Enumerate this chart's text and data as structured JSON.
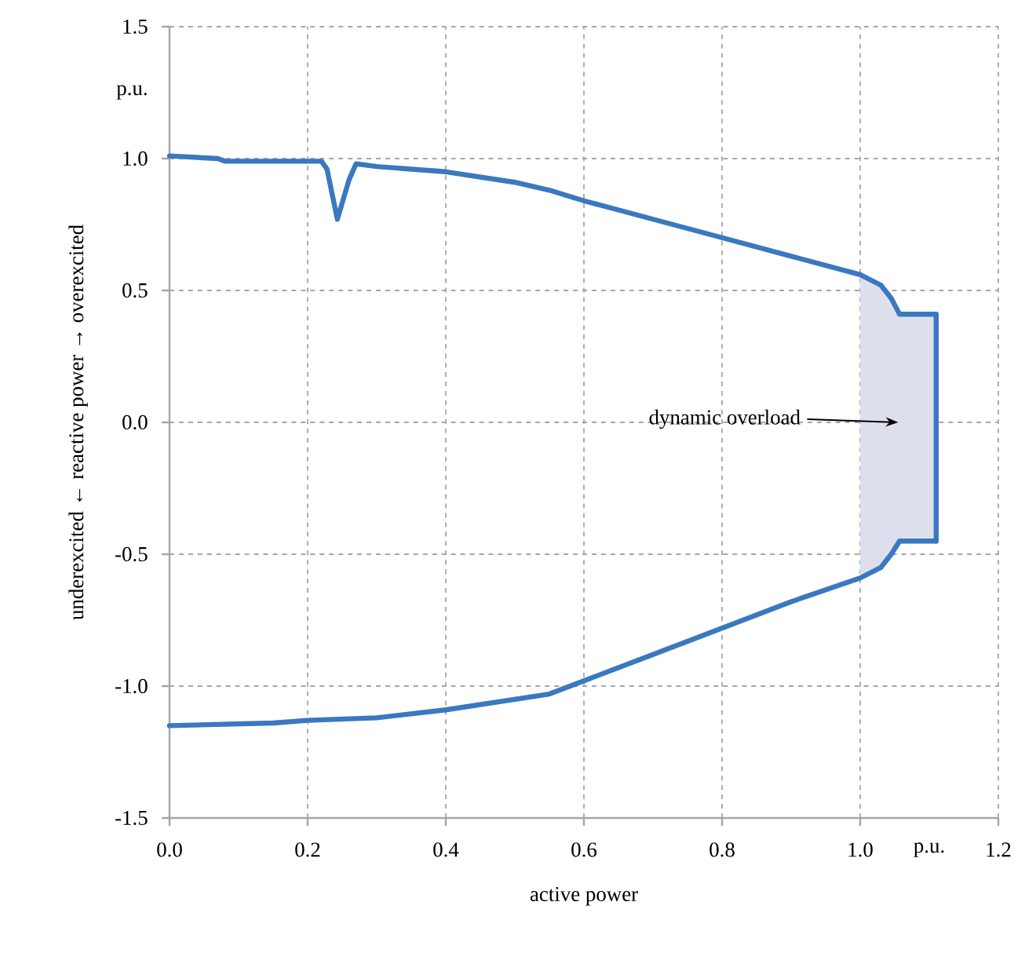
{
  "chart_data": {
    "type": "line",
    "xlabel": "active power",
    "ylabel": "underexcited ← reactive power → overexcited",
    "xlim": [
      0,
      1.2
    ],
    "ylim": [
      -1.5,
      1.5
    ],
    "xticks": [
      {
        "value": 0,
        "label": "0.0"
      },
      {
        "value": 0.2,
        "label": "0.2"
      },
      {
        "value": 0.4,
        "label": "0.4"
      },
      {
        "value": 0.6,
        "label": "0.6"
      },
      {
        "value": 0.8,
        "label": "0.8"
      },
      {
        "value": 1.0,
        "label": "1.0"
      },
      {
        "value": 1.2,
        "label": "1.2"
      }
    ],
    "yticks": [
      {
        "value": -1.5,
        "label": "-1.5"
      },
      {
        "value": -1.0,
        "label": "-1.0"
      },
      {
        "value": -0.5,
        "label": "-0.5"
      },
      {
        "value": 0,
        "label": "0.0"
      },
      {
        "value": 0.5,
        "label": "0.5"
      },
      {
        "value": 1.0,
        "label": "1.0"
      },
      {
        "value": 1.5,
        "label": "1.5"
      }
    ],
    "grid": true,
    "line_style": "solid",
    "marker": "none",
    "series": [
      {
        "color": "#3a78c0",
        "x": [
          0,
          0.07,
          0.08,
          0.22,
          0.228,
          0.243,
          0.26,
          0.27,
          0.3,
          0.35,
          0.4,
          0.45,
          0.5,
          0.55,
          0.6,
          0.7,
          0.8,
          0.9,
          1.0,
          1.03,
          1.045,
          1.057,
          1.11,
          1.11
        ],
        "values": [
          1.01,
          1.0,
          0.99,
          0.99,
          0.96,
          0.77,
          0.92,
          0.98,
          0.97,
          0.96,
          0.95,
          0.93,
          0.91,
          0.88,
          0.84,
          0.77,
          0.7,
          0.63,
          0.56,
          0.52,
          0.47,
          0.41,
          0.41,
          -0.45
        ]
      },
      {
        "color": "#3a78c0",
        "x": [
          0,
          0.15,
          0.2,
          0.3,
          0.4,
          0.45,
          0.55,
          0.6,
          0.7,
          0.8,
          0.9,
          1.0,
          1.03,
          1.045,
          1.057,
          1.11
        ],
        "values": [
          -1.15,
          -1.14,
          -1.13,
          -1.12,
          -1.09,
          -1.07,
          -1.03,
          -0.98,
          -0.88,
          -0.78,
          -0.68,
          -0.59,
          -0.55,
          -0.5,
          -0.45,
          -0.45
        ]
      }
    ],
    "bands": [
      {
        "axis": "x",
        "from": 1.0,
        "to": 1.11,
        "color": "#dde0ec"
      }
    ],
    "annotations": [
      "p.u.",
      "p.u.",
      "dynamic overload"
    ]
  }
}
